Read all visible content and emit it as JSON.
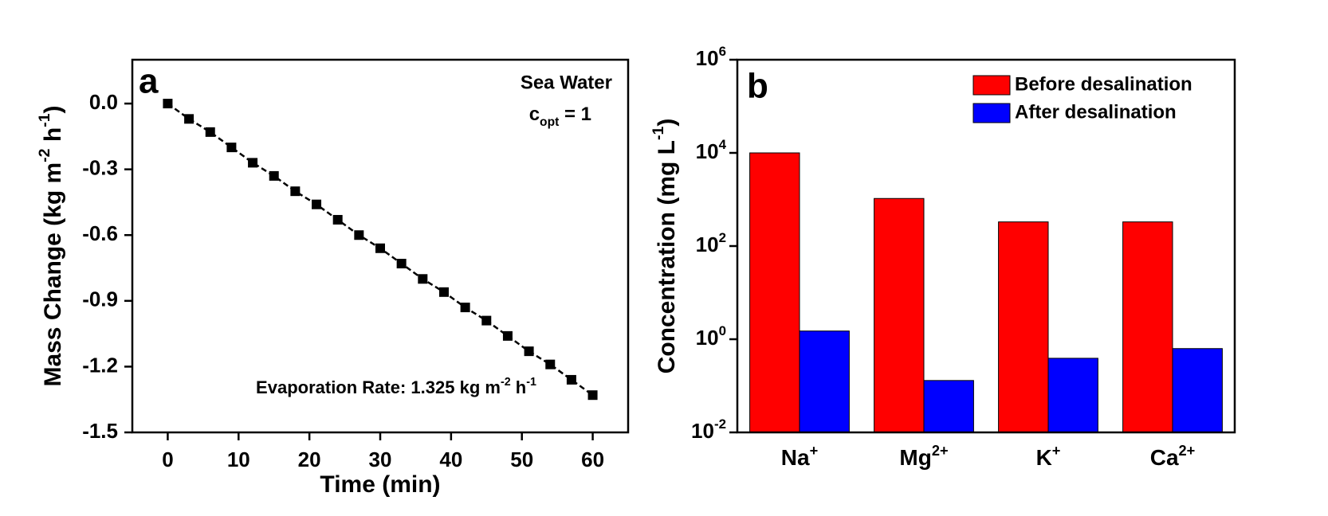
{
  "chart_data": [
    {
      "type": "line",
      "panel_label": "a",
      "xlabel": "Time (min)",
      "ylabel": [
        "Mass Change (kg m",
        "-2",
        " h",
        "-1",
        ")"
      ],
      "annotations": {
        "sample": "Sea Water",
        "copt": [
          "c",
          "opt",
          " = 1"
        ],
        "rate": [
          "Evaporation Rate: 1.325 kg m",
          "-2",
          " h",
          "-1"
        ]
      },
      "x": [
        0,
        3,
        6,
        9,
        12,
        15,
        18,
        21,
        24,
        27,
        30,
        33,
        36,
        39,
        42,
        45,
        48,
        51,
        54,
        57,
        60
      ],
      "series": [
        {
          "color": "#000000",
          "values": [
            0,
            -0.07,
            -0.13,
            -0.2,
            -0.27,
            -0.33,
            -0.4,
            -0.46,
            -0.53,
            -0.6,
            -0.66,
            -0.73,
            -0.8,
            -0.86,
            -0.93,
            -0.99,
            -1.06,
            -1.13,
            -1.19,
            -1.26,
            -1.33
          ]
        }
      ],
      "xlim": [
        -5,
        65
      ],
      "xticks": [
        0,
        10,
        20,
        30,
        40,
        50,
        60
      ],
      "ylim": [
        -1.5,
        0.2
      ],
      "yticks": [
        -1.5,
        -1.2,
        -0.9,
        -0.6,
        -0.3,
        {
          "value": 0,
          "label": "0.0"
        }
      ]
    },
    {
      "type": "bar",
      "panel_label": "b",
      "ylabel": [
        "Concentration (mg L",
        "-1",
        ")"
      ],
      "categories": [
        [
          "Na",
          "+"
        ],
        [
          "Mg",
          "2+"
        ],
        [
          "K",
          "+"
        ],
        [
          "Ca",
          "2+"
        ]
      ],
      "series": [
        {
          "name": "Before desalination",
          "color": "#ff0000",
          "values": [
            10000,
            1050,
            330,
            330
          ]
        },
        {
          "name": "After desalination",
          "color": "#0000ff",
          "values": [
            1.5,
            0.13,
            0.39,
            0.63
          ]
        }
      ],
      "log_y": true,
      "legend": "upper right",
      "ylim": [
        0.01,
        1000000
      ],
      "yticks": [
        {
          "value": 0.01,
          "label": [
            "10",
            "-2"
          ]
        },
        {
          "value": 1,
          "label": [
            "10",
            "0"
          ]
        },
        {
          "value": 100,
          "label": [
            "10",
            "2"
          ]
        },
        {
          "value": 10000,
          "label": [
            "10",
            "4"
          ]
        },
        {
          "value": 1000000,
          "label": [
            "10",
            "6"
          ]
        }
      ]
    }
  ]
}
